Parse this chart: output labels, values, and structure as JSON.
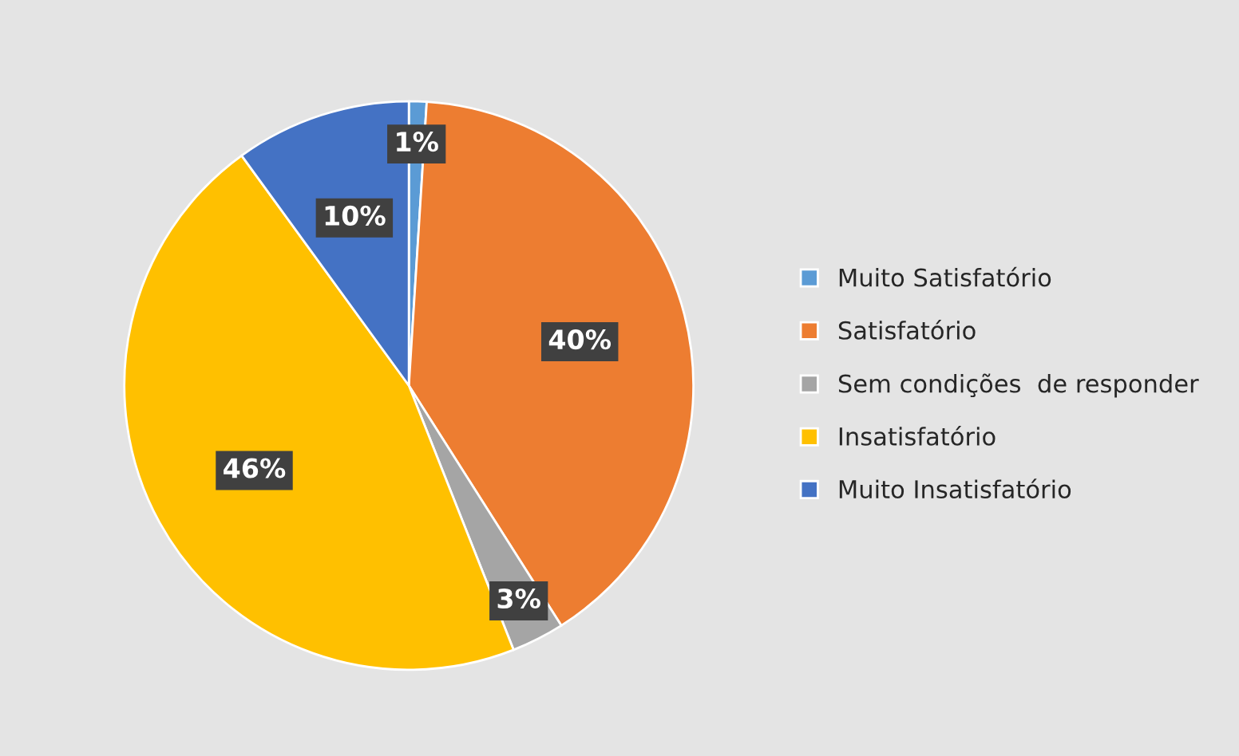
{
  "chart_data": {
    "type": "pie",
    "categories": [
      "Muito Satisfatório",
      "Satisfatório",
      "Sem condições  de responder",
      "Insatisfatório",
      "Muito Insatisfatório"
    ],
    "values": [
      1,
      40,
      3,
      46,
      10
    ],
    "colors": [
      "#5b9bd5",
      "#ed7d31",
      "#a5a5a5",
      "#ffc000",
      "#4472c4"
    ],
    "value_labels": [
      "1%",
      "40%",
      "3%",
      "46%",
      "10%"
    ],
    "legend": "right"
  }
}
